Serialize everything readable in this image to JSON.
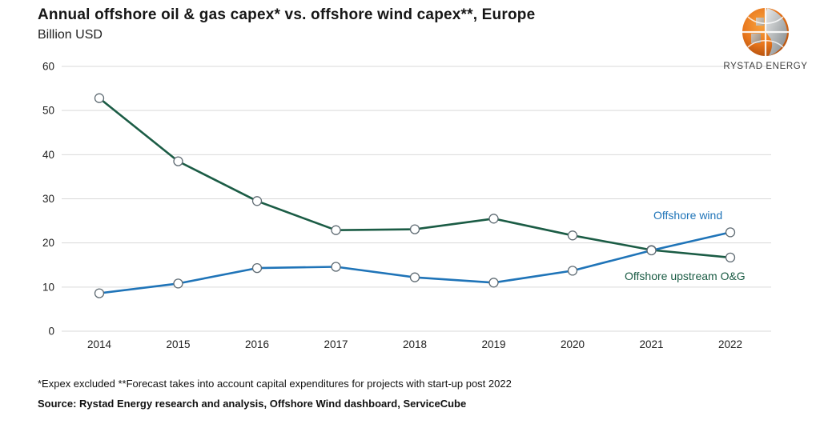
{
  "header": {
    "title": "Annual offshore oil & gas capex* vs. offshore wind capex**, Europe",
    "subtitle": "Billion USD"
  },
  "logo": {
    "text": "RYSTAD ENERGY",
    "orange": "#e8761c",
    "gray": "#9aa0a3"
  },
  "chart_data": {
    "type": "line",
    "title": "Annual offshore oil & gas capex* vs. offshore wind capex**, Europe",
    "subtitle": "Billion USD",
    "categories": [
      "2014",
      "2015",
      "2016",
      "2017",
      "2018",
      "2019",
      "2020",
      "2021",
      "2022"
    ],
    "series": [
      {
        "name": "Offshore upstream O&G",
        "color": "#1b5c45",
        "values": [
          52.8,
          38.5,
          29.5,
          22.9,
          23.1,
          25.5,
          21.7,
          18.4,
          16.7
        ]
      },
      {
        "name": "Offshore wind",
        "color": "#1f74b8",
        "values": [
          8.6,
          10.8,
          14.3,
          14.6,
          12.2,
          11.0,
          13.7,
          18.3,
          22.4
        ]
      }
    ],
    "xlabel": "",
    "ylabel": "Billion USD",
    "ylim": [
      0,
      60
    ],
    "yticks": [
      0,
      10,
      20,
      30,
      40,
      50,
      60
    ],
    "grid": "horizontal",
    "gridline_color": "#d9d9d9",
    "tick_label_color": "#222222",
    "marker": {
      "fill": "#ffffff",
      "stroke": "#606c74"
    },
    "legend_position": "inline-labels"
  },
  "footnotes": {
    "note": "*Expex excluded **Forecast takes into account capital expenditures for projects with start-up post 2022",
    "source": "Source: Rystad Energy research and analysis, Offshore Wind dashboard, ServiceCube"
  }
}
